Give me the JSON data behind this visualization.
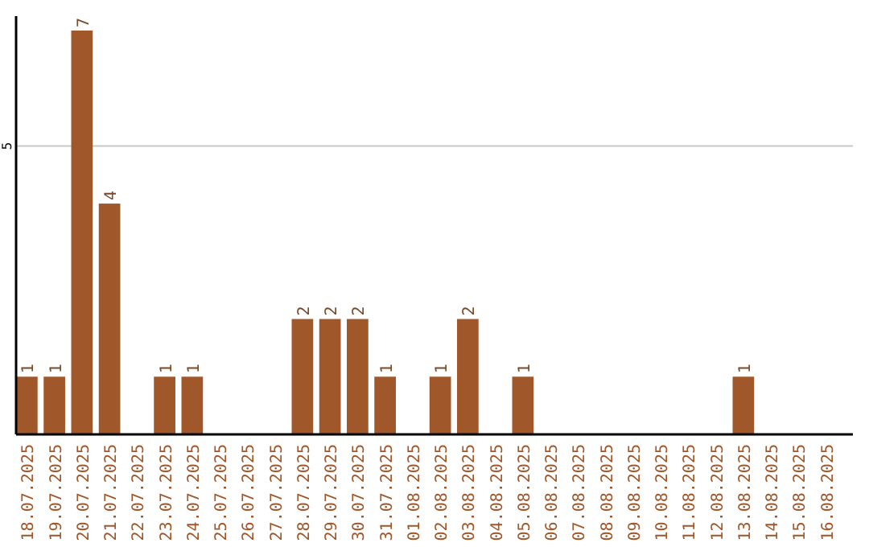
{
  "chart_data": {
    "type": "bar",
    "categories": [
      "18.07.2025",
      "19.07.2025",
      "20.07.2025",
      "21.07.2025",
      "22.07.2025",
      "23.07.2025",
      "24.07.2025",
      "25.07.2025",
      "26.07.2025",
      "27.07.2025",
      "28.07.2025",
      "29.07.2025",
      "30.07.2025",
      "31.07.2025",
      "01.08.2025",
      "02.08.2025",
      "03.08.2025",
      "04.08.2025",
      "05.08.2025",
      "06.08.2025",
      "07.08.2025",
      "08.08.2025",
      "09.08.2025",
      "10.08.2025",
      "11.08.2025",
      "12.08.2025",
      "13.08.2025",
      "14.08.2025",
      "15.08.2025",
      "16.08.2025"
    ],
    "values": [
      1,
      1,
      7,
      4,
      0,
      1,
      1,
      0,
      0,
      0,
      2,
      2,
      2,
      1,
      0,
      1,
      2,
      0,
      1,
      0,
      0,
      0,
      0,
      0,
      0,
      0,
      1,
      0,
      0,
      0
    ],
    "value_labels": [
      "1",
      "1",
      "7",
      "4",
      null,
      "1",
      "1",
      null,
      null,
      null,
      "2",
      "2",
      "2",
      "1",
      null,
      "1",
      "2",
      null,
      "1",
      null,
      null,
      null,
      null,
      null,
      null,
      null,
      "1",
      null,
      null,
      null
    ],
    "color": "#a0572a",
    "ylim": [
      0,
      7.25
    ],
    "yticks": [
      5
    ],
    "grid": "y"
  }
}
